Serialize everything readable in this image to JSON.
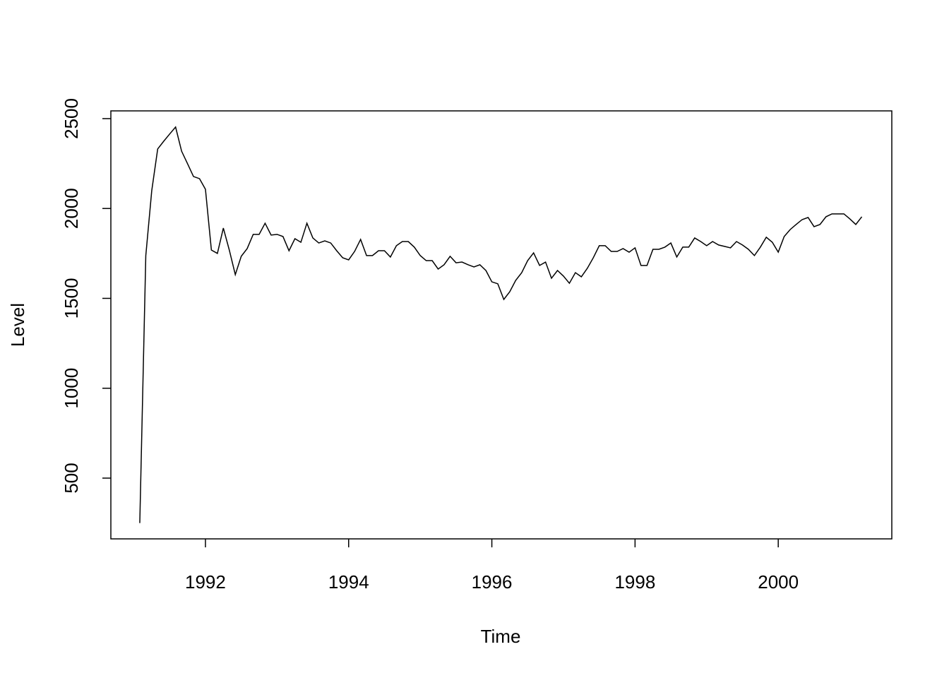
{
  "chart_data": {
    "type": "line",
    "x_label": "Time",
    "y_label": "Level",
    "x": [
      1991.083,
      1991.167,
      1991.25,
      1991.333,
      1991.417,
      1991.5,
      1991.583,
      1991.667,
      1991.75,
      1991.833,
      1991.917,
      1992,
      1992.083,
      1992.167,
      1992.25,
      1992.333,
      1992.417,
      1992.5,
      1992.583,
      1992.667,
      1992.75,
      1992.833,
      1992.917,
      1993,
      1993.083,
      1993.167,
      1993.25,
      1993.333,
      1993.417,
      1993.5,
      1993.583,
      1993.667,
      1993.75,
      1993.833,
      1993.917,
      1994,
      1994.083,
      1994.167,
      1994.25,
      1994.333,
      1994.417,
      1994.5,
      1994.583,
      1994.667,
      1994.75,
      1994.833,
      1994.917,
      1995,
      1995.083,
      1995.167,
      1995.25,
      1995.333,
      1995.417,
      1995.5,
      1995.583,
      1995.667,
      1995.75,
      1995.833,
      1995.917,
      1996,
      1996.083,
      1996.167,
      1996.25,
      1996.333,
      1996.417,
      1996.5,
      1996.583,
      1996.667,
      1996.75,
      1996.833,
      1996.917,
      1997,
      1997.083,
      1997.167,
      1997.25,
      1997.333,
      1997.417,
      1997.5,
      1997.583,
      1997.667,
      1997.75,
      1997.833,
      1997.917,
      1998,
      1998.083,
      1998.167,
      1998.25,
      1998.333,
      1998.417,
      1998.5,
      1998.583,
      1998.667,
      1998.75,
      1998.833,
      1998.917,
      1999,
      1999.083,
      1999.167,
      1999.25,
      1999.333,
      1999.417,
      1999.5,
      1999.583,
      1999.667,
      1999.75,
      1999.833,
      1999.917,
      2000,
      2000.083,
      2000.167,
      2000.25,
      2000.333,
      2000.417,
      2000.5,
      2000.583,
      2000.667,
      2000.75,
      2000.833,
      2000.917,
      2001,
      2001.083,
      2001.167
    ],
    "values": [
      250,
      1738,
      2099,
      2331,
      2374,
      2414,
      2453,
      2319,
      2249,
      2178,
      2166,
      2107,
      1769,
      1750,
      1891,
      1769,
      1632,
      1734,
      1777,
      1856,
      1856,
      1918,
      1852,
      1856,
      1844,
      1765,
      1832,
      1812,
      1918,
      1836,
      1808,
      1820,
      1808,
      1765,
      1726,
      1714,
      1761,
      1828,
      1738,
      1738,
      1765,
      1765,
      1730,
      1793,
      1816,
      1816,
      1785,
      1738,
      1710,
      1710,
      1663,
      1687,
      1734,
      1698,
      1702,
      1687,
      1675,
      1687,
      1655,
      1592,
      1581,
      1494,
      1537,
      1600,
      1643,
      1710,
      1753,
      1683,
      1702,
      1612,
      1655,
      1624,
      1584,
      1643,
      1620,
      1667,
      1726,
      1793,
      1793,
      1761,
      1761,
      1777,
      1757,
      1781,
      1683,
      1683,
      1773,
      1773,
      1785,
      1808,
      1730,
      1785,
      1785,
      1836,
      1816,
      1793,
      1816,
      1797,
      1789,
      1781,
      1816,
      1797,
      1773,
      1738,
      1785,
      1840,
      1812,
      1757,
      1844,
      1883,
      1911,
      1938,
      1950,
      1899,
      1911,
      1954,
      1970,
      1970,
      1970,
      1942,
      1911,
      1954
    ],
    "color": "#000000",
    "xlim": [
      1990.679,
      2001.586
    ],
    "xticks": [
      1992,
      1994,
      1996,
      1998,
      2000
    ],
    "ylim": [
      162,
      2543
    ],
    "yticks": [
      500,
      1000,
      1500,
      2000,
      2500
    ]
  }
}
